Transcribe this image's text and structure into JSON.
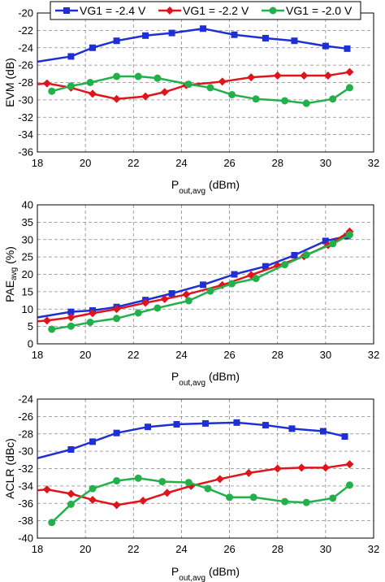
{
  "figure": {
    "series_styles": [
      {
        "key": "vg1_m24",
        "color": "#1f2fd6",
        "marker": "square"
      },
      {
        "key": "vg1_m22",
        "color": "#e0141b",
        "marker": "diamond"
      },
      {
        "key": "vg1_m20",
        "color": "#22b04a",
        "marker": "circle"
      }
    ],
    "legend": {
      "placement": "top",
      "entries": [
        "VG1 = -2.4 V",
        "VG1 = -2.2 V",
        "VG1 = -2.0 V"
      ]
    }
  },
  "chart_data": [
    {
      "type": "line",
      "ylabel": "EVM (dB)",
      "xlabel_main": "P",
      "xlabel_sub": "out,avg",
      "xlabel_unit": " (dBm)",
      "xlim": [
        18,
        32
      ],
      "ylim": [
        -36,
        -20
      ],
      "xticks": [
        "18",
        "20",
        "22",
        "24",
        "26",
        "28",
        "30",
        "32"
      ],
      "yticks": [
        "-20",
        "-22",
        "-24",
        "-26",
        "-28",
        "-30",
        "-32",
        "-34",
        "-36"
      ],
      "grid": true,
      "legend": "top",
      "series": [
        {
          "name": "VG1 = -2.4 V",
          "x": [
            18.0,
            19.4,
            20.3,
            21.3,
            22.5,
            23.6,
            24.9,
            26.2,
            27.5,
            28.7,
            30.0,
            30.9
          ],
          "y": [
            -25.6,
            -25.0,
            -24.0,
            -23.2,
            -22.6,
            -22.3,
            -21.8,
            -22.5,
            -22.9,
            -23.2,
            -23.8,
            -24.1
          ]
        },
        {
          "name": "VG1 = -2.2 V",
          "x": [
            18.0,
            18.4,
            19.4,
            20.3,
            21.3,
            22.5,
            23.3,
            24.2,
            25.7,
            26.9,
            28.0,
            29.1,
            30.1,
            31.0
          ],
          "y": [
            -28.2,
            -28.1,
            -28.6,
            -29.3,
            -29.9,
            -29.6,
            -29.1,
            -28.3,
            -27.9,
            -27.4,
            -27.2,
            -27.2,
            -27.2,
            -26.8
          ]
        },
        {
          "name": "VG1 = -2.0 V",
          "x": [
            18.6,
            19.4,
            20.2,
            21.3,
            22.2,
            23.0,
            24.3,
            25.2,
            26.1,
            27.1,
            28.3,
            29.2,
            30.3,
            31.0
          ],
          "y": [
            -29.0,
            -28.4,
            -28.0,
            -27.3,
            -27.3,
            -27.5,
            -28.2,
            -28.6,
            -29.4,
            -29.9,
            -30.1,
            -30.4,
            -29.9,
            -28.6
          ]
        }
      ]
    },
    {
      "type": "line",
      "ylabel_main": "PAE",
      "ylabel_sub": "avg",
      "ylabel_unit": " (%)",
      "xlabel_main": "P",
      "xlabel_sub": "out,avg",
      "xlabel_unit": " (dBm)",
      "xlim": [
        18,
        32
      ],
      "ylim": [
        0,
        40
      ],
      "xticks": [
        "18",
        "20",
        "22",
        "24",
        "26",
        "28",
        "30",
        "32"
      ],
      "yticks": [
        "0",
        "5",
        "10",
        "15",
        "20",
        "25",
        "30",
        "35",
        "40"
      ],
      "grid": true,
      "series": [
        {
          "name": "VG1 = -2.4 V",
          "x": [
            18.0,
            19.4,
            20.3,
            21.3,
            22.5,
            23.6,
            24.9,
            26.2,
            27.5,
            28.7,
            30.0,
            30.9
          ],
          "y": [
            7.6,
            9.2,
            9.6,
            10.6,
            12.6,
            14.5,
            17.0,
            20.0,
            22.3,
            25.5,
            29.6,
            31.0
          ]
        },
        {
          "name": "VG1 = -2.2 V",
          "x": [
            18.0,
            18.4,
            19.4,
            20.3,
            21.3,
            22.5,
            23.3,
            24.2,
            25.7,
            26.9,
            28.0,
            29.1,
            30.1,
            31.0
          ],
          "y": [
            6.5,
            6.7,
            7.6,
            8.8,
            10.0,
            11.8,
            12.9,
            14.2,
            16.9,
            19.8,
            22.5,
            25.2,
            28.4,
            32.3
          ]
        },
        {
          "name": "VG1 = -2.0 V",
          "x": [
            18.6,
            19.4,
            20.2,
            21.3,
            22.2,
            23.0,
            24.3,
            25.2,
            26.1,
            27.1,
            28.3,
            29.2,
            30.3,
            31.0
          ],
          "y": [
            4.2,
            5.1,
            6.2,
            7.3,
            8.9,
            10.3,
            12.4,
            15.2,
            17.3,
            18.8,
            22.8,
            25.6,
            28.8,
            31.4
          ]
        }
      ]
    },
    {
      "type": "line",
      "ylabel": "ACLR (dBc)",
      "xlabel_main": "P",
      "xlabel_sub": "out,avg",
      "xlabel_unit": " (dBm)",
      "xlim": [
        18,
        32
      ],
      "ylim": [
        -40,
        -24
      ],
      "xticks": [
        "18",
        "20",
        "22",
        "24",
        "26",
        "28",
        "30",
        "32"
      ],
      "yticks": [
        "-24",
        "-26",
        "-28",
        "-30",
        "-32",
        "-34",
        "-36",
        "-38",
        "-40"
      ],
      "grid": true,
      "series": [
        {
          "name": "VG1 = -2.4 V",
          "x": [
            18.0,
            19.4,
            20.3,
            21.3,
            22.6,
            23.8,
            25.0,
            26.3,
            27.5,
            28.6,
            29.9,
            30.8
          ],
          "y": [
            -30.8,
            -29.8,
            -28.9,
            -27.9,
            -27.2,
            -26.9,
            -26.8,
            -26.7,
            -27.0,
            -27.4,
            -27.7,
            -28.3
          ]
        },
        {
          "name": "VG1 = -2.2 V",
          "x": [
            18.0,
            18.4,
            19.4,
            20.3,
            21.3,
            22.4,
            23.4,
            24.4,
            25.6,
            26.8,
            28.0,
            29.0,
            30.0,
            31.0
          ],
          "y": [
            -34.5,
            -34.4,
            -34.9,
            -35.6,
            -36.2,
            -35.7,
            -34.8,
            -34.0,
            -33.2,
            -32.5,
            -32.0,
            -31.9,
            -31.9,
            -31.5
          ]
        },
        {
          "name": "VG1 = -2.0 V",
          "x": [
            18.6,
            19.4,
            20.3,
            21.3,
            22.2,
            23.2,
            24.3,
            25.1,
            26.0,
            27.0,
            28.3,
            29.2,
            30.3,
            31.0
          ],
          "y": [
            -38.2,
            -36.1,
            -34.3,
            -33.4,
            -33.1,
            -33.5,
            -33.6,
            -34.3,
            -35.3,
            -35.3,
            -35.8,
            -35.9,
            -35.4,
            -33.9
          ]
        }
      ]
    }
  ]
}
